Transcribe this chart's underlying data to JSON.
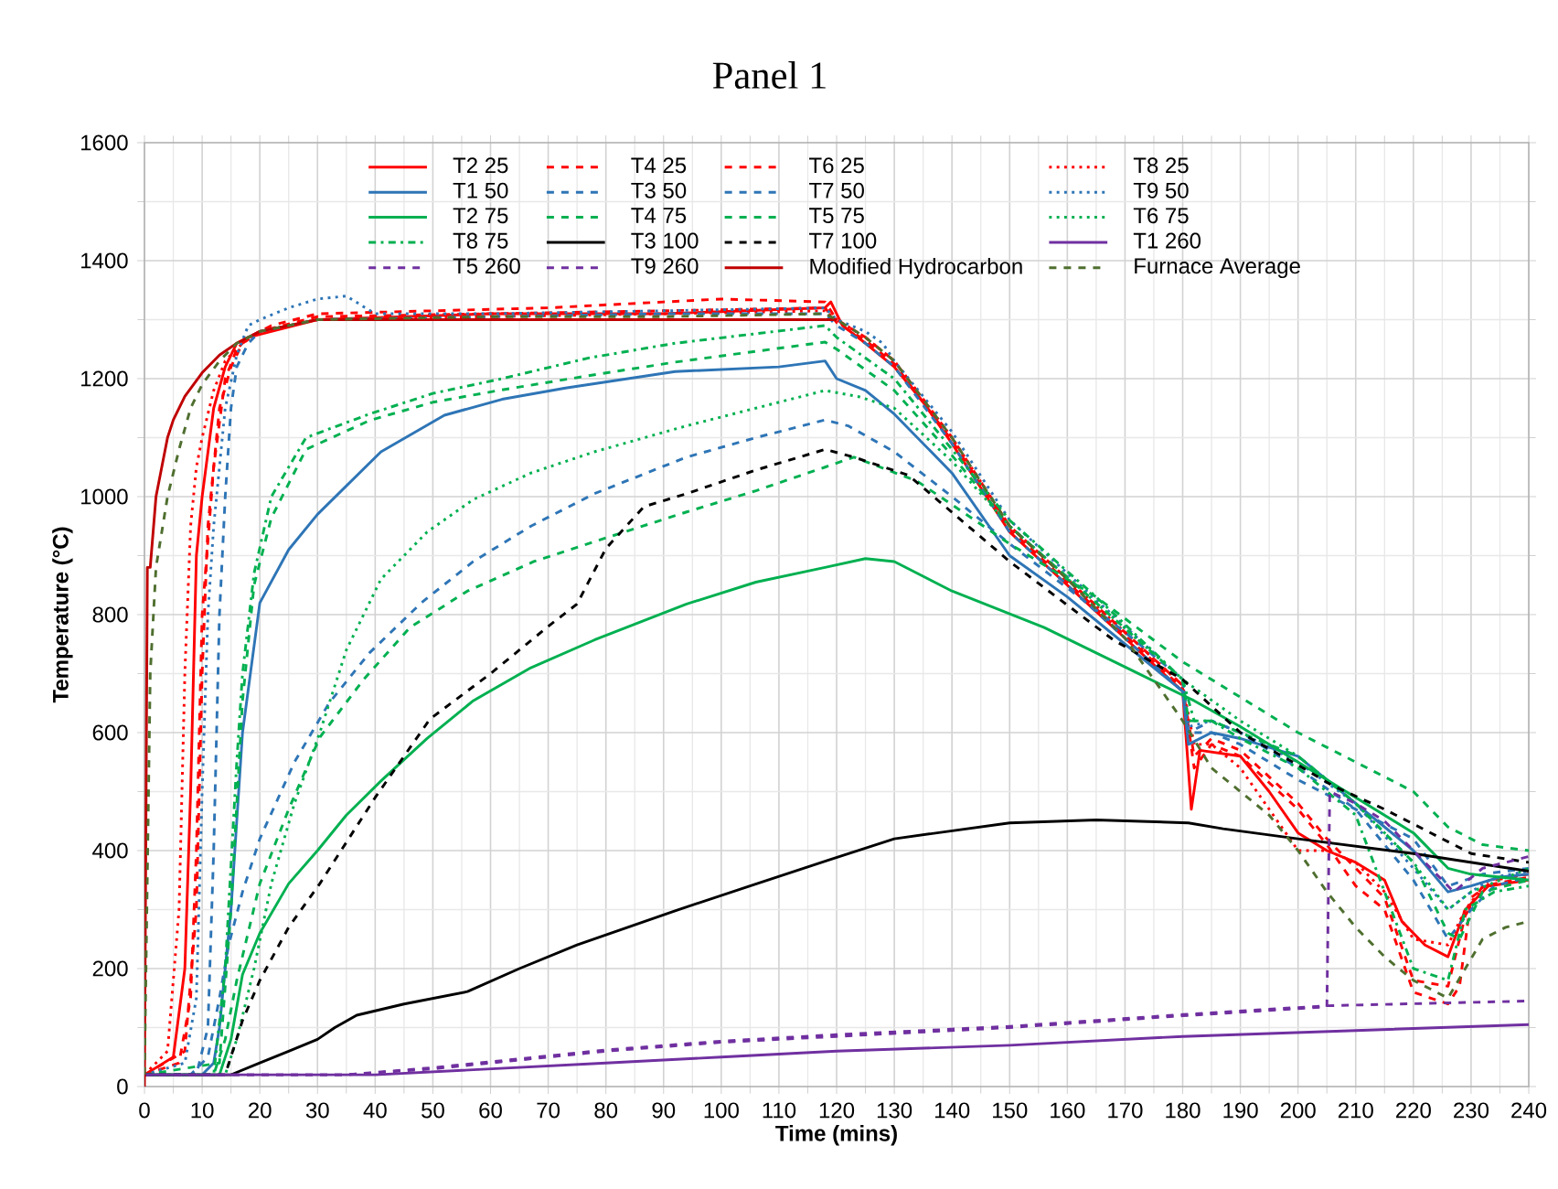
{
  "chart_data": {
    "type": "line",
    "title": "Panel 1",
    "xlabel": "Time (mins)",
    "ylabel": "Temperature (°C)",
    "xlim": [
      0,
      240
    ],
    "ylim": [
      0,
      1600
    ],
    "xticks": [
      0,
      10,
      20,
      30,
      40,
      50,
      60,
      70,
      80,
      90,
      100,
      110,
      120,
      130,
      140,
      150,
      160,
      170,
      180,
      190,
      200,
      210,
      220,
      230,
      240
    ],
    "yticks": [
      0,
      200,
      400,
      600,
      800,
      1000,
      1200,
      1400,
      1600
    ],
    "grid": true,
    "legend": "top",
    "marker": "none",
    "series": [
      {
        "name": "T2 25",
        "color": "#ff0000",
        "line_style": "solid",
        "x": [
          0,
          5,
          7,
          8,
          9,
          10,
          12,
          14,
          16,
          18,
          22,
          30,
          60,
          90,
          118,
          119,
          121,
          125,
          130,
          135,
          140,
          150,
          160,
          170,
          180,
          181.5,
          183,
          190,
          195,
          200,
          205,
          210,
          215,
          218,
          222,
          226,
          229,
          233,
          240
        ],
        "values": [
          20,
          50,
          200,
          500,
          900,
          1000,
          1150,
          1220,
          1260,
          1270,
          1280,
          1300,
          1310,
          1310,
          1320,
          1330,
          1290,
          1260,
          1220,
          1160,
          1090,
          940,
          850,
          760,
          670,
          470,
          570,
          560,
          500,
          430,
          400,
          380,
          350,
          280,
          240,
          220,
          300,
          340,
          350
        ]
      },
      {
        "name": "T4 25",
        "color": "#ff0000",
        "line_style": "dashed",
        "x": [
          0,
          6,
          8,
          9,
          10,
          12,
          14,
          16,
          18,
          22,
          30,
          50,
          70,
          90,
          100,
          118,
          120,
          125,
          130,
          140,
          150,
          160,
          170,
          180,
          182,
          185,
          190,
          200,
          205,
          210,
          215,
          220,
          226,
          228,
          230,
          234,
          240
        ],
        "values": [
          20,
          40,
          150,
          400,
          800,
          1050,
          1200,
          1250,
          1270,
          1290,
          1310,
          1315,
          1320,
          1330,
          1335,
          1330,
          1300,
          1270,
          1230,
          1100,
          950,
          860,
          770,
          680,
          540,
          580,
          560,
          470,
          410,
          340,
          300,
          160,
          140,
          170,
          320,
          350,
          360
        ]
      },
      {
        "name": "T6 25",
        "color": "#ff0000",
        "line_style": "dashed",
        "x": [
          0,
          7,
          9,
          10,
          11,
          13,
          15,
          17,
          20,
          30,
          60,
          90,
          118,
          120,
          125,
          130,
          140,
          150,
          160,
          170,
          180,
          182,
          185,
          190,
          200,
          205,
          210,
          215,
          220,
          226,
          229,
          232,
          240
        ],
        "values": [
          20,
          60,
          300,
          700,
          950,
          1150,
          1220,
          1260,
          1280,
          1305,
          1310,
          1315,
          1320,
          1295,
          1265,
          1225,
          1095,
          945,
          855,
          765,
          675,
          560,
          590,
          570,
          480,
          420,
          370,
          320,
          180,
          170,
          290,
          340,
          355
        ]
      },
      {
        "name": "T8 25",
        "color": "#ff0000",
        "line_style": "dotted",
        "x": [
          0,
          4,
          6,
          7,
          8,
          9,
          10,
          12,
          14,
          17,
          20,
          30,
          60,
          90,
          118,
          120,
          125,
          130,
          140,
          150,
          160,
          170,
          180,
          182,
          185,
          190,
          200,
          205,
          210,
          215,
          220,
          226,
          229,
          233,
          240
        ],
        "values": [
          20,
          60,
          300,
          700,
          950,
          1050,
          1100,
          1180,
          1230,
          1260,
          1280,
          1300,
          1305,
          1310,
          1315,
          1300,
          1270,
          1230,
          1100,
          950,
          860,
          770,
          680,
          580,
          580,
          540,
          400,
          400,
          380,
          330,
          250,
          240,
          300,
          350,
          360
        ]
      },
      {
        "name": "T1 50",
        "color": "#2e75b6",
        "line_style": "solid",
        "x": [
          0,
          10,
          12,
          13,
          14,
          15,
          17,
          20,
          25,
          30,
          41,
          52,
          62,
          73,
          92,
          110,
          118,
          120,
          125,
          130,
          140,
          150,
          160,
          170,
          180,
          181,
          185,
          190,
          200,
          210,
          220,
          226,
          230,
          235,
          240
        ],
        "values": [
          20,
          20,
          40,
          100,
          200,
          300,
          600,
          820,
          910,
          970,
          1076,
          1138,
          1165,
          1184,
          1212,
          1220,
          1230,
          1200,
          1180,
          1140,
          1040,
          900,
          830,
          750,
          670,
          580,
          600,
          590,
          560,
          480,
          400,
          330,
          340,
          355,
          360
        ]
      },
      {
        "name": "T3 50",
        "color": "#2e75b6",
        "line_style": "dashed",
        "x": [
          0,
          8,
          11,
          13,
          14.6,
          17,
          20,
          26,
          32,
          39,
          48,
          57,
          67,
          78,
          94,
          106,
          118,
          122,
          130,
          140,
          150,
          160,
          170,
          180,
          181,
          185,
          190,
          200,
          210,
          220,
          226,
          232,
          240
        ],
        "values": [
          20,
          20,
          50,
          150,
          240,
          330,
          420,
          550,
          650,
          735,
          820,
          890,
          950,
          1005,
          1067,
          1100,
          1130,
          1120,
          1076,
          1000,
          920,
          845,
          770,
          690,
          600,
          600,
          580,
          520,
          470,
          420,
          340,
          360,
          370
        ]
      },
      {
        "name": "T7 50",
        "color": "#2e75b6",
        "line_style": "dashed",
        "x": [
          0,
          9,
          11,
          12,
          13,
          14,
          15,
          16,
          18,
          20,
          30,
          60,
          90,
          118,
          120,
          125,
          130,
          140,
          150,
          160,
          170,
          180,
          181,
          185,
          190,
          200,
          210,
          220,
          226,
          230,
          234,
          240
        ],
        "values": [
          20,
          20,
          100,
          400,
          800,
          1000,
          1150,
          1220,
          1260,
          1280,
          1300,
          1305,
          1310,
          1310,
          1290,
          1260,
          1220,
          1090,
          940,
          850,
          760,
          670,
          600,
          620,
          600,
          540,
          470,
          350,
          250,
          300,
          340,
          355
        ]
      },
      {
        "name": "T9 50",
        "color": "#2e75b6",
        "line_style": "dotted",
        "x": [
          0,
          7,
          9,
          10,
          11,
          12,
          14,
          16,
          18,
          20,
          25,
          30,
          35,
          40,
          60,
          90,
          118,
          120,
          125,
          128,
          130,
          140,
          150,
          160,
          170,
          180,
          181,
          185,
          190,
          200,
          210,
          220,
          226,
          230,
          234,
          240
        ],
        "values": [
          20,
          40,
          150,
          500,
          800,
          950,
          1150,
          1240,
          1290,
          1300,
          1320,
          1335,
          1340,
          1310,
          1310,
          1315,
          1320,
          1300,
          1280,
          1260,
          1230,
          1110,
          960,
          870,
          780,
          690,
          610,
          620,
          600,
          550,
          480,
          370,
          300,
          330,
          355,
          365
        ]
      },
      {
        "name": "T2 75",
        "color": "#00b050",
        "line_style": "solid",
        "x": [
          0,
          13,
          15,
          17,
          20,
          25,
          30,
          35,
          41,
          49,
          57,
          67,
          78,
          94,
          106,
          118,
          125,
          130,
          140,
          156,
          171.5,
          182,
          190,
          200,
          210,
          220,
          226,
          230,
          240
        ],
        "values": [
          20,
          20,
          80,
          190,
          260,
          344,
          400,
          460,
          518,
          590,
          654,
          710,
          757,
          818,
          855,
          880,
          895,
          890,
          840,
          778,
          704,
          654,
          610,
          550,
          490,
          430,
          370,
          360,
          350
        ]
      },
      {
        "name": "T4 75",
        "color": "#00b050",
        "line_style": "dashed",
        "x": [
          0,
          12,
          14,
          16,
          20,
          25,
          30.4,
          38,
          46,
          56,
          67.5,
          80,
          94,
          106,
          118,
          123,
          134,
          150,
          165,
          180,
          190,
          200,
          210,
          220,
          226,
          232,
          240
        ],
        "values": [
          20,
          20,
          80,
          180,
          344,
          470,
          592,
          690,
          778,
          840,
          890,
          930,
          974,
          1010,
          1050,
          1067,
          1026,
          920,
          830,
          720,
          660,
          600,
          550,
          500,
          440,
          410,
          400
        ]
      },
      {
        "name": "T5 75",
        "color": "#00b050",
        "line_style": "dashed",
        "x": [
          0,
          13,
          15,
          17,
          19,
          22,
          28,
          39,
          50,
          62,
          77,
          92,
          105,
          118,
          120,
          130,
          140,
          150,
          165,
          180,
          181,
          185,
          190,
          200,
          210,
          220,
          226,
          228,
          232,
          240
        ],
        "values": [
          20,
          40,
          300,
          654,
          850,
          964,
          1080,
          1129,
          1160,
          1181,
          1205,
          1228,
          1245,
          1262,
          1250,
          1180,
          1070,
          950,
          820,
          690,
          620,
          620,
          600,
          560,
          480,
          380,
          260,
          250,
          330,
          350
        ]
      },
      {
        "name": "T6 75",
        "color": "#00b050",
        "line_style": "dotted",
        "x": [
          0,
          14,
          16,
          19,
          22,
          26,
          30.4,
          35,
          41,
          49,
          57,
          67,
          78,
          94,
          106,
          118,
          124,
          130,
          140,
          150,
          165,
          180,
          190,
          200,
          210,
          220,
          226,
          230,
          240
        ],
        "values": [
          20,
          20,
          80,
          200,
          344,
          480,
          600,
          740,
          860,
          940,
          995,
          1040,
          1076,
          1120,
          1150,
          1180,
          1169,
          1150,
          1060,
          950,
          820,
          690,
          620,
          560,
          480,
          380,
          300,
          330,
          370
        ]
      },
      {
        "name": "T8 75",
        "color": "#00b050",
        "line_style": "dashdot",
        "x": [
          0,
          12,
          14,
          16,
          17,
          19,
          22,
          28,
          39,
          50,
          62,
          77,
          92,
          105,
          118,
          120,
          130,
          140,
          150,
          165,
          180,
          182,
          185,
          190,
          200,
          210,
          220,
          226,
          229,
          234,
          240
        ],
        "values": [
          20,
          20,
          200,
          550,
          700,
          870,
          1000,
          1100,
          1140,
          1175,
          1200,
          1235,
          1260,
          1275,
          1290,
          1270,
          1200,
          1080,
          960,
          830,
          690,
          620,
          620,
          590,
          540,
          460,
          200,
          180,
          300,
          330,
          340
        ]
      },
      {
        "name": "T3 100",
        "color": "#000000",
        "line_style": "solid",
        "x": [
          0,
          15,
          20,
          25,
          30,
          33,
          36.8,
          45,
          56,
          65,
          75,
          92,
          105,
          118.6,
          130,
          150,
          165,
          181,
          187,
          200,
          220,
          240
        ],
        "values": [
          20,
          20,
          40,
          60,
          80,
          100,
          121,
          140,
          161,
          200,
          240,
          298,
          340,
          384,
          420,
          447,
          452,
          447,
          437,
          420,
          395,
          365
        ]
      },
      {
        "name": "T7 100",
        "color": "#000000",
        "line_style": "dashed",
        "x": [
          0,
          14,
          17,
          20,
          25,
          30.4,
          40,
          49.5,
          60,
          70,
          75,
          80,
          86.6,
          94,
          106,
          118,
          123,
          132.5,
          150,
          168,
          180,
          190,
          200,
          206,
          215,
          225,
          230,
          240
        ],
        "values": [
          20,
          20,
          112,
          180,
          270,
          344,
          490,
          623,
          700,
          780,
          818,
          912,
          983,
          1005,
          1045,
          1080,
          1067,
          1036,
          890,
          757,
          690,
          600,
          545,
          510,
          470,
          420,
          395,
          380
        ]
      },
      {
        "name": "T1 260",
        "color": "#7030a0",
        "line_style": "solid",
        "x": [
          0,
          40,
          60,
          80,
          100,
          120,
          150,
          180,
          210,
          240
        ],
        "values": [
          20,
          20,
          30,
          40,
          50,
          60,
          70,
          85,
          95,
          105
        ]
      },
      {
        "name": "T5 260",
        "color": "#7030a0",
        "line_style": "dashed",
        "x": [
          0,
          35,
          50,
          60,
          80,
          100,
          120,
          150,
          180,
          205,
          205.5,
          210,
          215,
          222,
          227,
          232,
          240
        ],
        "values": [
          20,
          20,
          30,
          40,
          60,
          75,
          85,
          100,
          120,
          135,
          500,
          480,
          450,
          380,
          330,
          370,
          390
        ]
      },
      {
        "name": "T9 260",
        "color": "#7030a0",
        "line_style": "dashed",
        "x": [
          0,
          35,
          50,
          60,
          80,
          100,
          120,
          150,
          180,
          205,
          240
        ],
        "values": [
          20,
          20,
          32,
          42,
          62,
          77,
          88,
          102,
          122,
          137,
          145
        ]
      },
      {
        "name": "Modified Hydrocarbon",
        "color": "#c00000",
        "line_style": "solid",
        "x": [
          0,
          0.5,
          1,
          2,
          3,
          4,
          5,
          7,
          10,
          13,
          16,
          20,
          25,
          30,
          120
        ],
        "values": [
          0,
          880,
          880,
          1000,
          1050,
          1100,
          1130,
          1170,
          1210,
          1240,
          1260,
          1280,
          1290,
          1300,
          1300
        ]
      },
      {
        "name": "Furnace Average",
        "color": "#4f6f2f",
        "line_style": "dashed",
        "x": [
          0,
          1,
          2,
          4,
          6,
          8,
          10,
          13,
          16,
          18,
          20,
          30,
          60,
          90,
          118,
          120,
          125,
          130,
          140,
          150,
          160,
          170,
          180,
          185,
          190,
          195,
          200,
          205,
          210,
          215,
          220,
          226,
          229,
          232,
          236,
          240
        ],
        "values": [
          20,
          700,
          880,
          1000,
          1080,
          1150,
          1190,
          1230,
          1260,
          1270,
          1280,
          1300,
          1305,
          1305,
          1310,
          1300,
          1270,
          1230,
          1100,
          950,
          860,
          760,
          620,
          540,
          500,
          460,
          400,
          330,
          270,
          220,
          180,
          150,
          200,
          250,
          270,
          280
        ]
      }
    ]
  }
}
